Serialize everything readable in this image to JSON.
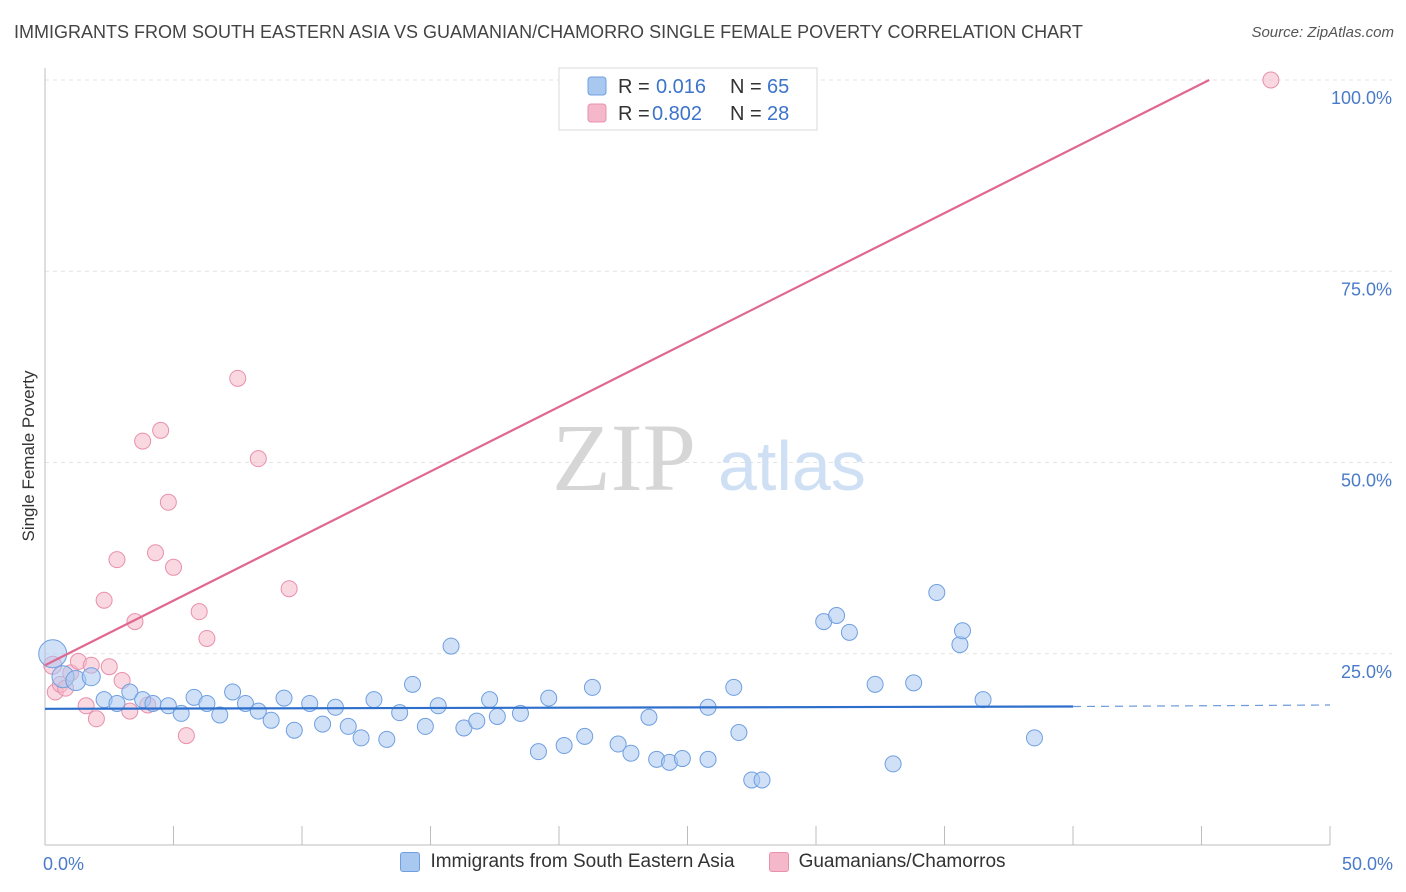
{
  "title": "IMMIGRANTS FROM SOUTH EASTERN ASIA VS GUAMANIAN/CHAMORRO SINGLE FEMALE POVERTY CORRELATION CHART",
  "source": "Source: ZipAtlas.com",
  "watermark": {
    "zip": "ZIP",
    "atlas": "atlas"
  },
  "colors": {
    "blue_fill": "#a9c8f0",
    "blue_stroke": "#6f9fe0",
    "blue_line": "#2f6fcc",
    "pink_fill": "#f5b8cb",
    "pink_stroke": "#e890ac",
    "pink_line": "#e06890",
    "grid": "#e3e3e3",
    "tick_label": "#4a7bc8"
  },
  "chart_data": {
    "type": "scatter",
    "title": "IMMIGRANTS FROM SOUTH EASTERN ASIA VS GUAMANIAN/CHAMORRO SINGLE FEMALE POVERTY CORRELATION CHART",
    "xlabel": "",
    "ylabel": "Single Female Poverty",
    "xlim": [
      0,
      50
    ],
    "ylim": [
      0,
      100
    ],
    "x_tick_labels": [
      "0.0%",
      "50.0%"
    ],
    "y_ticks": [
      25,
      50,
      75,
      100
    ],
    "y_tick_labels": [
      "25.0%",
      "50.0%",
      "75.0%",
      "100.0%"
    ],
    "legend": [
      {
        "r_label": "R =",
        "r_value": "0.016",
        "n_label": "N =",
        "n_value": "65"
      },
      {
        "r_label": "R =",
        "r_value": "0.802",
        "n_label": "N =",
        "n_value": "28"
      }
    ],
    "series": [
      {
        "name": "Immigrants from South Eastern Asia",
        "color": "#a9c8f0",
        "trend": {
          "x0": 0,
          "y0": 17.8,
          "x1": 40,
          "y1": 18.1,
          "dash_to_x": 50,
          "dash_y": 18.3
        },
        "points": [
          [
            0.3,
            25.0,
            14
          ],
          [
            0.7,
            22.0,
            11
          ],
          [
            1.2,
            21.5,
            10
          ],
          [
            1.8,
            22.0,
            9
          ],
          [
            2.3,
            19.0,
            8
          ],
          [
            2.8,
            18.5,
            8
          ],
          [
            3.3,
            20.0,
            8
          ],
          [
            3.8,
            19.0,
            8
          ],
          [
            4.2,
            18.5,
            8
          ],
          [
            4.8,
            18.2,
            8
          ],
          [
            5.3,
            17.2,
            8
          ],
          [
            5.8,
            19.3,
            8
          ],
          [
            6.3,
            18.5,
            8
          ],
          [
            6.8,
            17.0,
            8
          ],
          [
            7.3,
            20.0,
            8
          ],
          [
            7.8,
            18.5,
            8
          ],
          [
            8.3,
            17.5,
            8
          ],
          [
            8.8,
            16.3,
            8
          ],
          [
            9.3,
            19.2,
            8
          ],
          [
            9.7,
            15.0,
            8
          ],
          [
            10.3,
            18.5,
            8
          ],
          [
            10.8,
            15.8,
            8
          ],
          [
            11.3,
            18.0,
            8
          ],
          [
            11.8,
            15.5,
            8
          ],
          [
            12.3,
            14.0,
            8
          ],
          [
            12.8,
            19.0,
            8
          ],
          [
            13.3,
            13.8,
            8
          ],
          [
            13.8,
            17.3,
            8
          ],
          [
            14.3,
            21.0,
            8
          ],
          [
            14.8,
            15.5,
            8
          ],
          [
            15.3,
            18.2,
            8
          ],
          [
            15.8,
            26.0,
            8
          ],
          [
            16.3,
            15.3,
            8
          ],
          [
            16.8,
            16.2,
            8
          ],
          [
            17.3,
            19.0,
            8
          ],
          [
            17.6,
            16.8,
            8
          ],
          [
            18.5,
            17.2,
            8
          ],
          [
            19.2,
            12.2,
            8
          ],
          [
            19.6,
            19.2,
            8
          ],
          [
            20.2,
            13.0,
            8
          ],
          [
            21.0,
            14.2,
            8
          ],
          [
            21.3,
            20.6,
            8
          ],
          [
            22.3,
            13.2,
            8
          ],
          [
            22.8,
            12.0,
            8
          ],
          [
            23.5,
            16.7,
            8
          ],
          [
            23.8,
            11.2,
            8
          ],
          [
            24.3,
            10.8,
            8
          ],
          [
            24.8,
            11.3,
            8
          ],
          [
            25.8,
            11.2,
            8
          ],
          [
            25.8,
            18.0,
            8
          ],
          [
            26.8,
            20.6,
            8
          ],
          [
            27.0,
            14.7,
            8
          ],
          [
            27.5,
            8.5,
            8
          ],
          [
            27.9,
            8.5,
            8
          ],
          [
            30.3,
            29.2,
            8
          ],
          [
            30.8,
            30.0,
            8
          ],
          [
            31.3,
            27.8,
            8
          ],
          [
            32.3,
            21.0,
            8
          ],
          [
            33.0,
            10.6,
            8
          ],
          [
            33.8,
            21.2,
            8
          ],
          [
            34.7,
            33.0,
            8
          ],
          [
            35.6,
            26.2,
            8
          ],
          [
            35.7,
            28.0,
            8
          ],
          [
            36.5,
            19.0,
            8
          ],
          [
            38.5,
            14.0,
            8
          ]
        ]
      },
      {
        "name": "Guamanians/Chamorros",
        "color": "#f5b8cb",
        "trend": {
          "x0": 0,
          "y0": 23.5,
          "x1": 45.3,
          "y1": 100
        },
        "points": [
          [
            0.3,
            23.5,
            9
          ],
          [
            0.4,
            20.0,
            8
          ],
          [
            0.6,
            21.0,
            8
          ],
          [
            0.8,
            20.5,
            8
          ],
          [
            1.0,
            22.5,
            8
          ],
          [
            1.3,
            24.0,
            8
          ],
          [
            1.6,
            18.2,
            8
          ],
          [
            1.8,
            23.5,
            8
          ],
          [
            2.0,
            16.5,
            8
          ],
          [
            2.3,
            32.0,
            8
          ],
          [
            2.5,
            23.3,
            8
          ],
          [
            2.8,
            37.3,
            8
          ],
          [
            3.0,
            21.5,
            8
          ],
          [
            3.3,
            17.5,
            8
          ],
          [
            3.5,
            29.2,
            8
          ],
          [
            3.8,
            52.8,
            8
          ],
          [
            4.0,
            18.3,
            8
          ],
          [
            4.3,
            38.2,
            8
          ],
          [
            4.5,
            54.2,
            8
          ],
          [
            4.8,
            44.8,
            8
          ],
          [
            5.0,
            36.3,
            8
          ],
          [
            5.5,
            14.3,
            8
          ],
          [
            6.0,
            30.5,
            8
          ],
          [
            6.3,
            27.0,
            8
          ],
          [
            7.5,
            61.0,
            8
          ],
          [
            8.3,
            50.5,
            8
          ],
          [
            9.5,
            33.5,
            8
          ],
          [
            47.7,
            100.0,
            8
          ]
        ]
      }
    ]
  },
  "bottom_legend": [
    {
      "label": "Immigrants from South Eastern Asia"
    },
    {
      "label": "Guamanians/Chamorros"
    }
  ]
}
